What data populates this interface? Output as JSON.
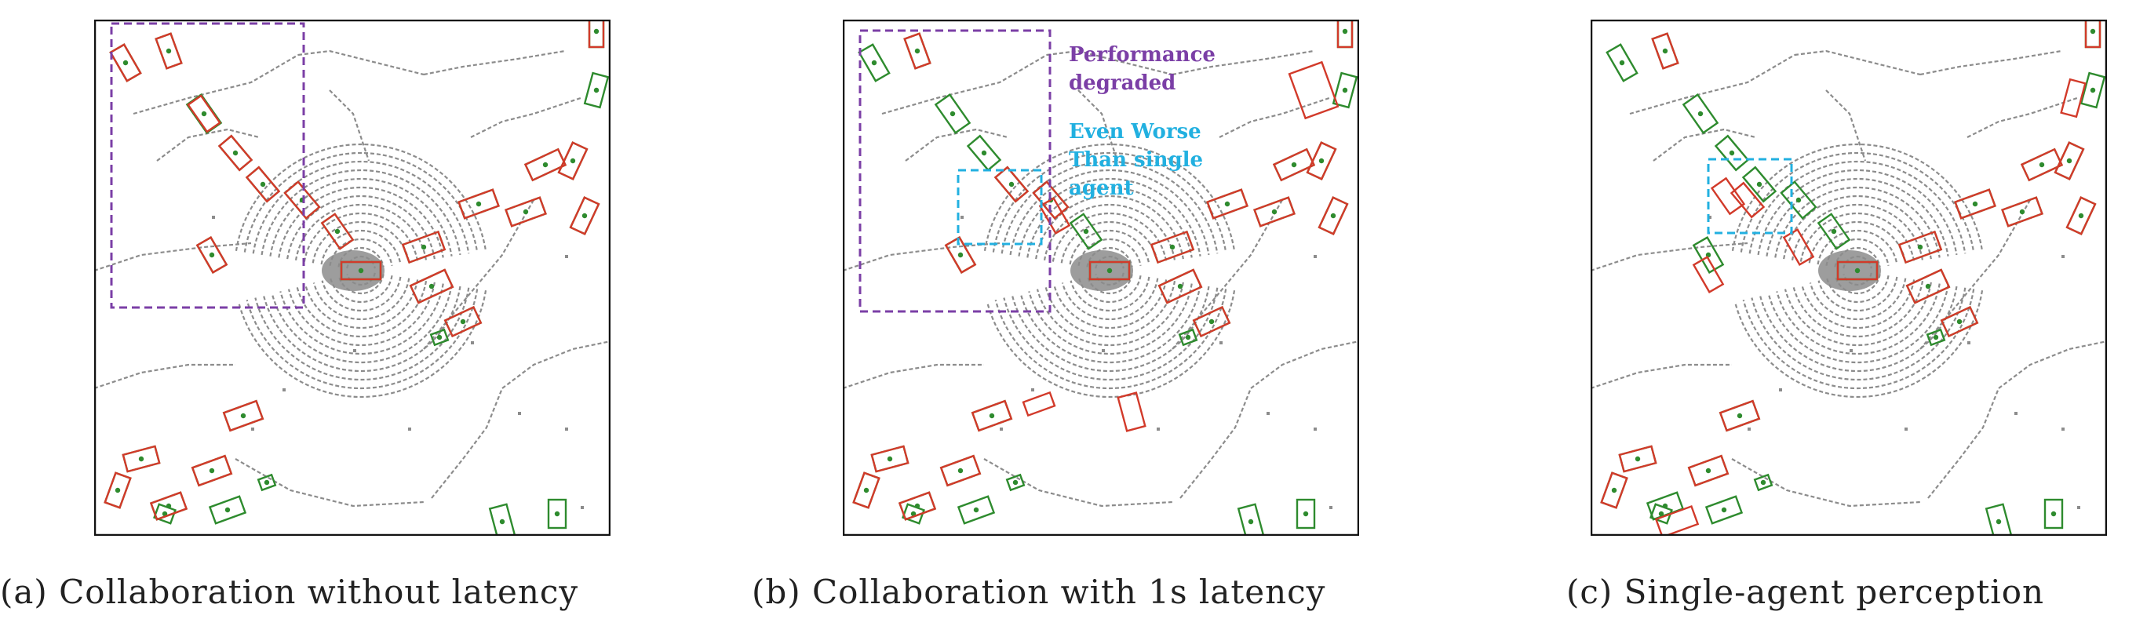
{
  "colors": {
    "ground_truth": "#2e8b2e",
    "prediction": "#d23a2a",
    "lidar": "#8c8c8c",
    "collab_region": "#7b3fa6",
    "single_agent_region": "#22b0e0"
  },
  "panels": [
    {
      "id": "a",
      "caption": "(a) Collaboration without latency"
    },
    {
      "id": "b",
      "caption": "(b) Collaboration with 1s latency"
    },
    {
      "id": "c",
      "caption": "(c) Single-agent perception"
    }
  ],
  "annotations": {
    "performance_degraded": [
      "Performance",
      "degraded"
    ],
    "even_worse": [
      "Even Worse",
      "Than single",
      "agent"
    ]
  }
}
